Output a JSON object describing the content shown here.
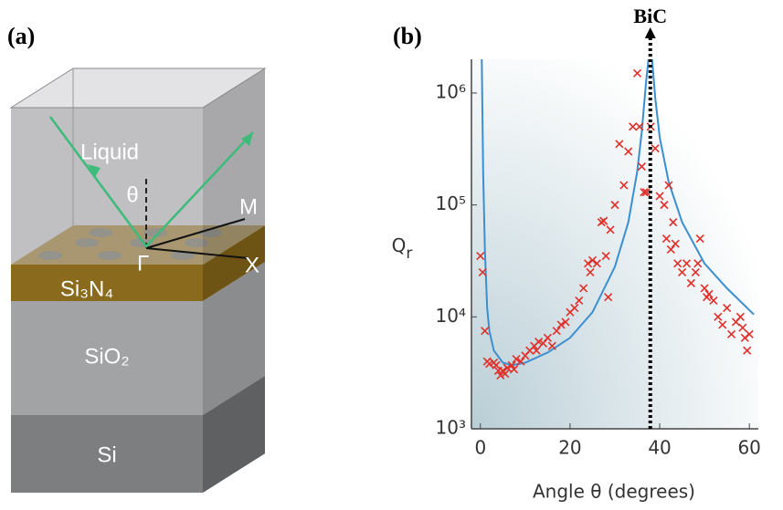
{
  "panel_labels": [
    "(a)",
    "(b)"
  ],
  "diagram": {
    "layers": {
      "liquid": "Liquid",
      "top": "Si₃N₄",
      "middle": "SiO₂",
      "bottom": "Si"
    },
    "labels": {
      "angle": "θ",
      "m": "M",
      "x": "X",
      "gamma": "Γ"
    }
  },
  "chart_data": {
    "type": "scatter",
    "xlabel": "Angle θ (degrees)",
    "ylabel": "Q",
    "ylabel_sub": "r",
    "xlim": [
      -2,
      62
    ],
    "xticks": [
      0,
      20,
      40,
      60
    ],
    "ylim": [
      1000,
      2000000
    ],
    "log_y": true,
    "yticks": [
      {
        "value": 1000,
        "label": "10³"
      },
      {
        "value": 10000,
        "label": "10⁴"
      },
      {
        "value": 100000,
        "label": "10⁵"
      },
      {
        "value": 1000000,
        "label": "10⁶"
      }
    ],
    "annotation": {
      "text": "BiC",
      "x": 37.9
    },
    "curve": {
      "color": "#3a8fd0",
      "x": [
        0.3,
        0.6,
        1,
        1.5,
        2,
        3,
        5,
        7,
        10,
        15,
        20,
        25,
        30,
        33,
        35,
        36,
        37,
        37.5,
        37.9,
        38.3,
        39,
        40,
        42,
        45,
        50,
        55,
        61
      ],
      "values": [
        2000000,
        200000,
        40000,
        12000,
        7500,
        5000,
        3900,
        3700,
        3900,
        4800,
        6500,
        11000,
        28000,
        70000,
        200000,
        450000,
        1300000,
        2000000,
        null,
        2000000,
        900000,
        400000,
        160000,
        70000,
        30000,
        18000,
        10500
      ]
    },
    "points": {
      "color": "#e0302a",
      "x": [
        0,
        0.5,
        1,
        1.5,
        2,
        3,
        3.5,
        4,
        4.5,
        5,
        5.5,
        6,
        7,
        7.5,
        8,
        9,
        10,
        11,
        12,
        12.5,
        13,
        14,
        15,
        16,
        17,
        18,
        19,
        20,
        21,
        22,
        23,
        24,
        24.5,
        25,
        26,
        27,
        27.5,
        28,
        28.5,
        29,
        30,
        31,
        32,
        33,
        34,
        35,
        35.5,
        36,
        36.5,
        37,
        38,
        39,
        40,
        41,
        42,
        43,
        41.5,
        42.5,
        43.5,
        44,
        45,
        46,
        47,
        48,
        48.5,
        49,
        50,
        50.5,
        51,
        52,
        53,
        54,
        55,
        56,
        57,
        58,
        58.5,
        59,
        59.5,
        60
      ],
      "values": [
        35000,
        25000,
        7500,
        4000,
        3800,
        3900,
        3700,
        3300,
        3000,
        3300,
        3100,
        3500,
        3700,
        3400,
        4200,
        4000,
        4500,
        5000,
        5500,
        5000,
        6000,
        5800,
        6500,
        5500,
        7500,
        8500,
        9000,
        11000,
        12000,
        14000,
        18000,
        30000,
        25000,
        32000,
        30000,
        70000,
        72000,
        35000,
        15000,
        60000,
        100000,
        350000,
        150000,
        300000,
        500000,
        1500000,
        500000,
        220000,
        130000,
        130000,
        500000,
        320000,
        120000,
        100000,
        150000,
        70000,
        50000,
        40000,
        45000,
        30000,
        25000,
        30000,
        20000,
        25000,
        30000,
        50000,
        18000,
        15000,
        16000,
        14000,
        10000,
        8500,
        12000,
        7000,
        9000,
        10000,
        8000,
        6500,
        5000,
        7000
      ]
    }
  }
}
